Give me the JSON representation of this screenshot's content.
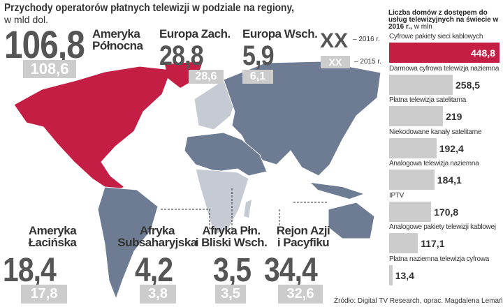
{
  "title": "Przychody operatorów płatnych telewizji w podziale na regiony,",
  "subtitle": "w mld dol.",
  "legend": [
    {
      "sample": "XX",
      "label": "– 2016 r."
    },
    {
      "sample": "XX",
      "label": "– 2015 r."
    }
  ],
  "source": "Źródło: Digital TV Research, oprac. Magdalena Lemańska",
  "chart_data": [
    {
      "type": "map",
      "categories": [
        "Ameryka\nPółnocna",
        "Europa Zach.",
        "Europa Wsch.",
        "Ameryka\nŁacińska",
        "Afryka\nSubsaharyjska",
        "Afryka Płn.\ni Bliski Wsch.",
        "Rejon Azji\ni Pacyfiku"
      ],
      "series": [
        {
          "color": "#555555",
          "values": [
            106.8,
            28.8,
            5.9,
            18.4,
            4.2,
            3.5,
            34.4
          ],
          "value_labels": [
            "106,8",
            "28,8",
            "5,9",
            "18,4",
            "4,2",
            "3,5",
            "34,4"
          ]
        },
        {
          "color": "#cccccc",
          "values": [
            108.6,
            28.6,
            6.1,
            17.8,
            3.8,
            3.5,
            32.6
          ],
          "value_labels": [
            "108,6",
            "28,6",
            "6,1",
            "17,8",
            "3,8",
            "3,5",
            "32,6"
          ]
        }
      ]
    },
    {
      "type": "bar",
      "title": "Liczba domów z dostępem do usług telewizyjnych na świecie w 2016 r.,",
      "unit": "w mln",
      "categories": [
        "Cyfrowe pakiety sieci kablowych",
        "Darmowa cyfrowa telewizja naziemna",
        "Płatna telewizja satelitarna",
        "Niekodowane kanały satelitarne",
        "Analogowa telewizja naziemna",
        "IPTV",
        "Analogowe pakiety telewizji kablowej",
        "Płatna naziemna telewizja cyfrowa"
      ],
      "values": [
        448.8,
        258.5,
        219,
        192.4,
        184.1,
        170.8,
        117.1,
        13.4
      ],
      "value_labels": [
        "448,8",
        "258,5",
        "219",
        "192,4",
        "184,1",
        "170,8",
        "117,1",
        "13,4"
      ],
      "colors": [
        "#c41e45",
        "#cccccc",
        "#cccccc",
        "#cccccc",
        "#cccccc",
        "#cccccc",
        "#cccccc",
        "#cccccc"
      ]
    }
  ]
}
